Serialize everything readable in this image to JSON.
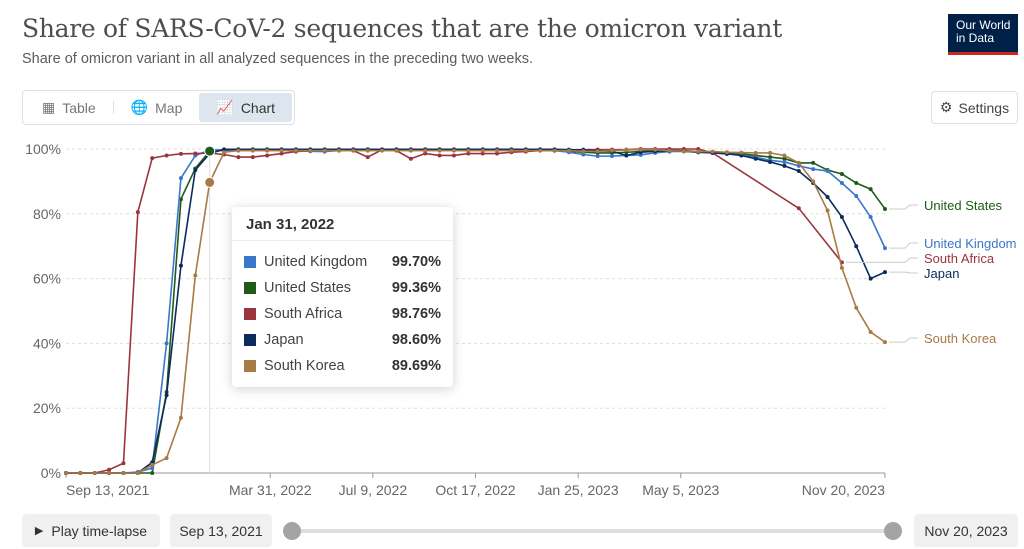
{
  "header": {
    "title": "Share of SARS-CoV-2 sequences that are the omicron variant",
    "subtitle": "Share of omicron variant in all analyzed sequences in the preceding two weeks.",
    "logo": "Our World in Data"
  },
  "tabs": [
    {
      "label": "Table",
      "icon": "table-icon"
    },
    {
      "label": "Map",
      "icon": "globe-icon"
    },
    {
      "label": "Chart",
      "icon": "line-chart-icon",
      "active": true
    }
  ],
  "settings_label": "Settings",
  "controls": {
    "play_label": "Play time-lapse",
    "start_date": "Sep 13, 2021",
    "end_date": "Nov 20, 2023",
    "range_start": 0,
    "range_end": 1
  },
  "tooltip": {
    "date": "Jan 31, 2022",
    "rows": [
      {
        "name": "United Kingdom",
        "value": "99.70%",
        "color": "#3a77c8"
      },
      {
        "name": "United States",
        "value": "99.36%",
        "color": "#1e5a18"
      },
      {
        "name": "South Africa",
        "value": "98.76%",
        "color": "#9a3440"
      },
      {
        "name": "Japan",
        "value": "98.60%",
        "color": "#0a2b5c"
      },
      {
        "name": "South Korea",
        "value": "89.69%",
        "color": "#a87a45"
      }
    ]
  },
  "chart_data": {
    "type": "line",
    "title": "Share of SARS-CoV-2 sequences that are the omicron variant",
    "x_start": "2021-09-13",
    "x_step_days": 14,
    "ylim": [
      0,
      100
    ],
    "y_ticks": [
      "0%",
      "20%",
      "40%",
      "60%",
      "80%",
      "100%"
    ],
    "x_ticks": [
      {
        "label": "Sep 13, 2021",
        "date": "2021-09-13"
      },
      {
        "label": "Mar 31, 2022",
        "date": "2022-03-31"
      },
      {
        "label": "Jul 9, 2022",
        "date": "2022-07-09"
      },
      {
        "label": "Oct 17, 2022",
        "date": "2022-10-17"
      },
      {
        "label": "Jan 25, 2023",
        "date": "2023-01-25"
      },
      {
        "label": "May 5, 2023",
        "date": "2023-05-05"
      },
      {
        "label": "Nov 20, 2023",
        "date": "2023-11-20"
      }
    ],
    "hover_index": 10,
    "series": [
      {
        "name": "United States",
        "color": "#1e5a18",
        "values": [
          0,
          0,
          0,
          0,
          0,
          0,
          0,
          25,
          84.5,
          94,
          99.36,
          99.6,
          99.6,
          99.6,
          99.6,
          99.6,
          99.6,
          99.6,
          99.6,
          99.6,
          99.6,
          99.6,
          99.6,
          99.6,
          99.6,
          99.6,
          99.6,
          99.6,
          99.6,
          99.6,
          99.6,
          99.6,
          99.6,
          99.6,
          99.5,
          99.3,
          99,
          98.8,
          98.8,
          99,
          99.2,
          99.5,
          99.6,
          99.5,
          99.2,
          99,
          98.8,
          98.5,
          98,
          97.5,
          97,
          95.7,
          95.7,
          93.5,
          92.3,
          89.5,
          87.6,
          81.5
        ]
      },
      {
        "name": "United Kingdom",
        "color": "#3a77c8",
        "values": [
          0,
          0,
          0,
          0,
          0,
          0.3,
          1.5,
          40,
          91,
          98,
          99.7,
          99.7,
          99.8,
          99.8,
          99.8,
          99.7,
          99.5,
          99.3,
          99.2,
          99.5,
          99.7,
          99.8,
          99.8,
          99.8,
          99.8,
          99.8,
          99.8,
          99.8,
          99.8,
          99.8,
          99.8,
          99.8,
          99.8,
          99.8,
          99.5,
          99,
          98.3,
          97.8,
          97.8,
          98,
          98.2,
          98.8,
          99.2,
          99.3,
          99,
          98.8,
          98.5,
          98.2,
          97.5,
          96.5,
          96,
          94.8,
          93.8,
          93.2,
          89.5,
          85.5,
          79,
          69.4
        ]
      },
      {
        "name": "South Africa",
        "color": "#9a3440",
        "values": [
          0,
          0,
          0,
          1,
          3,
          80.5,
          97.2,
          98,
          98.5,
          98.6,
          98.76,
          98.3,
          97.5,
          97.5,
          98,
          98.6,
          99.2,
          99.5,
          99.5,
          99.8,
          99.5,
          97.5,
          99.8,
          99.5,
          97,
          98.6,
          98,
          98,
          98.6,
          98.6,
          98.6,
          99,
          99.2,
          99.5,
          99.5,
          99.7,
          99.8,
          99.8,
          99.8,
          99.8,
          100,
          100,
          100,
          100,
          100,
          98.8,
          null,
          null,
          null,
          null,
          null,
          81.7,
          null,
          null,
          65,
          null,
          null,
          null
        ]
      },
      {
        "name": "Japan",
        "color": "#0a2b5c",
        "values": [
          0,
          0,
          0,
          0,
          0,
          0,
          3.3,
          24,
          64,
          93.5,
          98.6,
          99.9,
          99.9,
          99.9,
          99.9,
          99.9,
          99.9,
          99.9,
          99.9,
          99.9,
          99.9,
          99.9,
          99.9,
          99.9,
          99.9,
          99.9,
          99.9,
          99.9,
          99.9,
          99.9,
          99.9,
          99.9,
          99.9,
          99.9,
          99.9,
          99.8,
          99.7,
          99.5,
          99.3,
          98,
          99,
          99.3,
          99.5,
          99.3,
          99,
          98.8,
          98.5,
          98,
          97,
          96,
          94.8,
          93.2,
          89.5,
          85.2,
          79,
          70,
          60,
          62
        ]
      },
      {
        "name": "South Korea",
        "color": "#a87a45",
        "values": [
          0,
          0,
          0,
          0,
          0,
          0,
          2.5,
          4.6,
          17,
          61,
          89.69,
          99,
          99.5,
          99.5,
          99.5,
          99.5,
          99.5,
          99.5,
          99.5,
          99.5,
          99.5,
          99.5,
          99.5,
          99.5,
          99.5,
          99.5,
          99.5,
          99.5,
          99.5,
          99.5,
          99.5,
          99.5,
          99.5,
          99.5,
          99.5,
          99.5,
          99.3,
          99.3,
          99.5,
          99.7,
          99.8,
          99.8,
          99.5,
          99.3,
          99.2,
          99.2,
          99,
          98.9,
          98.8,
          98.8,
          98,
          95.7,
          90,
          81,
          63.3,
          51,
          43.5,
          40.4
        ]
      }
    ],
    "end_labels": [
      {
        "name": "United States"
      },
      {
        "name": "United Kingdom"
      },
      {
        "name": "South Africa"
      },
      {
        "name": "Japan"
      },
      {
        "name": "South Korea"
      }
    ]
  }
}
